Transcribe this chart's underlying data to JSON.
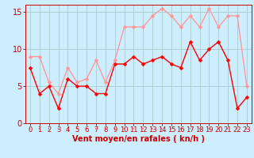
{
  "x": [
    0,
    1,
    2,
    3,
    4,
    5,
    6,
    7,
    8,
    9,
    10,
    11,
    12,
    13,
    14,
    15,
    16,
    17,
    18,
    19,
    20,
    21,
    22,
    23
  ],
  "wind_mean": [
    7.5,
    4.0,
    5.0,
    2.0,
    6.0,
    5.0,
    5.0,
    4.0,
    4.0,
    8.0,
    8.0,
    9.0,
    8.0,
    8.5,
    9.0,
    8.0,
    7.5,
    11.0,
    8.5,
    10.0,
    11.0,
    8.5,
    2.0,
    3.5
  ],
  "wind_gust": [
    9.0,
    9.0,
    5.5,
    4.0,
    7.5,
    5.5,
    6.0,
    8.5,
    5.5,
    8.5,
    13.0,
    13.0,
    13.0,
    14.5,
    15.5,
    14.5,
    13.0,
    14.5,
    13.0,
    15.5,
    13.0,
    14.5,
    14.5,
    5.0
  ],
  "mean_color": "#ff0000",
  "gust_color": "#ff9999",
  "bg_color": "#cceeff",
  "grid_color": "#aacccc",
  "axis_color": "#cc0000",
  "ylim": [
    0,
    16
  ],
  "yticks": [
    0,
    5,
    10,
    15
  ],
  "xlabel": "Vent moyen/en rafales ( kn/h )",
  "xlabel_color": "#cc0000",
  "xlabel_fontsize": 7,
  "tick_fontsize": 6,
  "marker_size": 2.5,
  "line_width": 1.0
}
